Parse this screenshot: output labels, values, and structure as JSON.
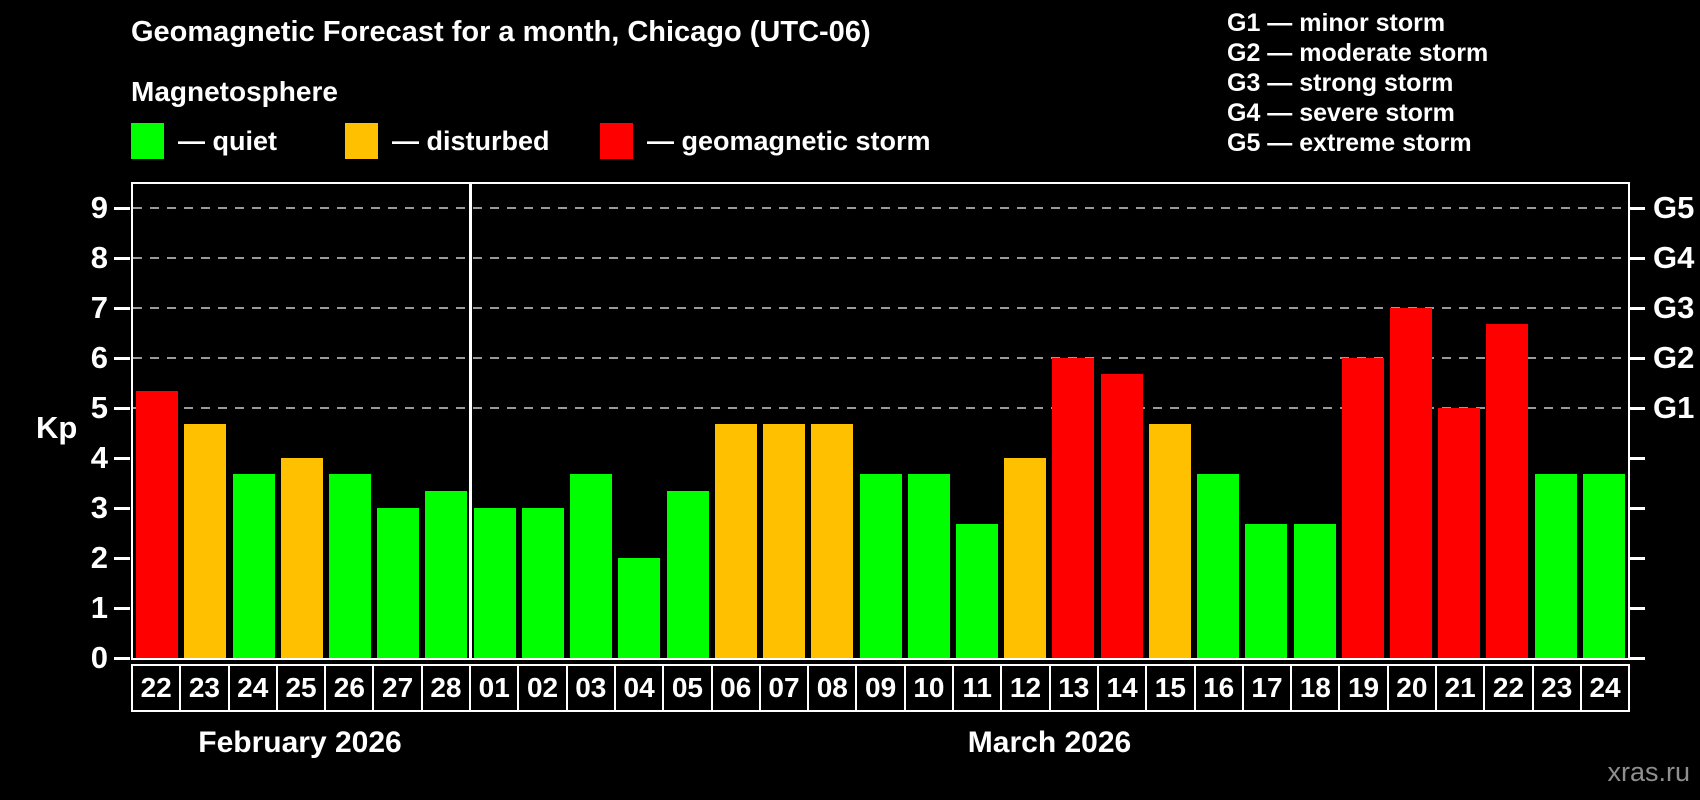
{
  "header": {
    "title": "Geomagnetic Forecast for a month, Chicago (UTC-06)",
    "subtitle": "Magnetosphere"
  },
  "legend": {
    "items": [
      {
        "key": "quiet",
        "label": "— quiet",
        "color": "#00ff00"
      },
      {
        "key": "disturbed",
        "label": "— disturbed",
        "color": "#ffc000"
      },
      {
        "key": "storm",
        "label": "— geomagnetic storm",
        "color": "#ff0000"
      }
    ]
  },
  "gscale_legend": {
    "lines": [
      "G1 — minor storm",
      "G2 — moderate storm",
      "G3 — strong storm",
      "G4 — severe storm",
      "G5 — extreme storm"
    ]
  },
  "axes": {
    "y_label": "Kp",
    "y_ticks": [
      0,
      1,
      2,
      3,
      4,
      5,
      6,
      7,
      8,
      9
    ],
    "right_labels": [
      {
        "label": "G1",
        "kp": 5
      },
      {
        "label": "G2",
        "kp": 6
      },
      {
        "label": "G3",
        "kp": 7
      },
      {
        "label": "G4",
        "kp": 8
      },
      {
        "label": "G5",
        "kp": 9
      }
    ],
    "month_labels": [
      "February 2026",
      "March 2026"
    ]
  },
  "footer": {
    "watermark": "xras.ru"
  },
  "chart_data": {
    "type": "bar",
    "title": "Geomagnetic Forecast for a month, Chicago (UTC-06)",
    "xlabel": "",
    "ylabel": "Kp",
    "ylim": [
      0,
      9.5
    ],
    "grid": "horizontal dashed lines at Kp 5,6,7,8,9 only",
    "legend_position": "top-left",
    "months": [
      {
        "label": "February 2026",
        "days": 7
      },
      {
        "label": "March 2026",
        "days": 24
      }
    ],
    "categories": [
      "22",
      "23",
      "24",
      "25",
      "26",
      "27",
      "28",
      "01",
      "02",
      "03",
      "04",
      "05",
      "06",
      "07",
      "08",
      "09",
      "10",
      "11",
      "12",
      "13",
      "14",
      "15",
      "16",
      "17",
      "18",
      "19",
      "20",
      "21",
      "22",
      "23",
      "24"
    ],
    "values": [
      5.33,
      4.67,
      3.67,
      4.0,
      3.67,
      3.0,
      3.33,
      3.0,
      3.0,
      3.67,
      2.0,
      3.33,
      4.67,
      4.67,
      4.67,
      3.67,
      3.67,
      2.67,
      4.0,
      6.0,
      5.67,
      4.67,
      3.67,
      2.67,
      2.67,
      6.0,
      7.0,
      5.0,
      6.67,
      3.67,
      3.67
    ],
    "statuses": [
      "storm",
      "disturbed",
      "quiet",
      "disturbed",
      "quiet",
      "quiet",
      "quiet",
      "quiet",
      "quiet",
      "quiet",
      "quiet",
      "quiet",
      "disturbed",
      "disturbed",
      "disturbed",
      "quiet",
      "quiet",
      "quiet",
      "disturbed",
      "storm",
      "storm",
      "disturbed",
      "quiet",
      "quiet",
      "quiet",
      "storm",
      "storm",
      "storm",
      "storm",
      "quiet",
      "quiet"
    ],
    "status_colors": {
      "quiet": "#00ff00",
      "disturbed": "#ffc000",
      "storm": "#ff0000"
    }
  }
}
